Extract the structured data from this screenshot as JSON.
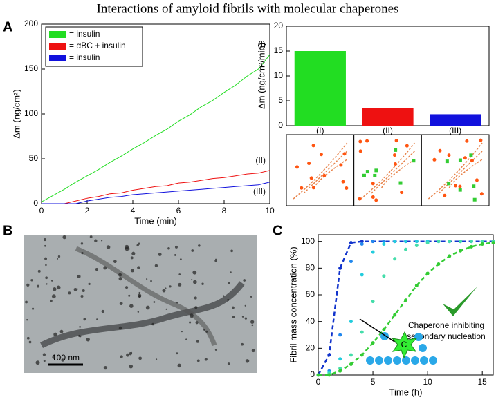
{
  "title": "Interactions of amyloid fibrils with molecular chaperones",
  "panel_labels": [
    "A",
    "B",
    "C"
  ],
  "micrograph": {
    "scale_bar": "100 nm"
  },
  "chart_data": [
    {
      "type": "line",
      "xlabel": "Time (min)",
      "ylabel": "Δm (ng/cm²)",
      "xlim": [
        0,
        10
      ],
      "ylim": [
        0,
        200
      ],
      "xticks": [
        0,
        2,
        4,
        6,
        8,
        10
      ],
      "yticks": [
        0,
        50,
        100,
        150,
        200
      ],
      "legend": "upper left",
      "x": [
        0,
        0.5,
        1,
        1.5,
        2,
        2.5,
        3,
        3.5,
        4,
        4.5,
        5,
        5.5,
        6,
        6.5,
        7,
        7.5,
        8,
        8.5,
        9,
        9.5,
        10
      ],
      "series": [
        {
          "name": "= insulin",
          "label": "(I)",
          "color": "#22dd22",
          "values": [
            2,
            9,
            16,
            24,
            31,
            38,
            46,
            53,
            61,
            68,
            76,
            83,
            92,
            99,
            108,
            115,
            124,
            132,
            142,
            150,
            166
          ]
        },
        {
          "name": "= αBC + insulin",
          "label": "(II)",
          "color": "#ee1111",
          "values": [
            0,
            0,
            0,
            3,
            6,
            8,
            11,
            12,
            15,
            17,
            19,
            20,
            23,
            24,
            26,
            28,
            29,
            31,
            33,
            34,
            37
          ]
        },
        {
          "name": "= insulin",
          "label": "(III)",
          "color": "#1111dd",
          "values": [
            0,
            0,
            0,
            0,
            3,
            5,
            7,
            8,
            10,
            11,
            12,
            13,
            14,
            15,
            16,
            17,
            18,
            19,
            20,
            21,
            24
          ]
        }
      ]
    },
    {
      "type": "bar",
      "ylabel": "Δm (ng/cm²/min)",
      "categories": [
        "(I)",
        "(II)",
        "(III)"
      ],
      "values": [
        15,
        3.6,
        2.3
      ],
      "colors": [
        "#22dd22",
        "#ee1111",
        "#1111dd"
      ],
      "ylim": [
        0,
        20
      ],
      "yticks": [
        0,
        5,
        10,
        15,
        20
      ]
    },
    {
      "type": "scatter",
      "xlabel": "Time (h)",
      "ylabel": "Fibril mass concentration (%)",
      "xlim": [
        0,
        16
      ],
      "ylim": [
        0,
        105
      ],
      "xticks": [
        0,
        5,
        10,
        15
      ],
      "yticks": [
        0,
        20,
        40,
        60,
        80,
        100
      ],
      "annotations": [
        "Chaperone inhibiting",
        "secondary nucleation"
      ],
      "chaperone_label": "C",
      "x": [
        0,
        1,
        2,
        3,
        4,
        5,
        6,
        7,
        8,
        9,
        10,
        11,
        12,
        13,
        14,
        15,
        16
      ],
      "series": [
        {
          "color": "#1133cc",
          "dashed": true,
          "values": [
            0,
            15,
            80,
            99,
            100,
            100,
            100,
            100,
            100,
            100,
            100,
            100,
            100,
            100,
            100,
            100,
            100
          ]
        },
        {
          "color": "#2288ee",
          "values": [
            0,
            3,
            30,
            85,
            98,
            100,
            100,
            100,
            100,
            100,
            100,
            100,
            100,
            100,
            100,
            100,
            100
          ]
        },
        {
          "color": "#22ccdd",
          "values": [
            0,
            2,
            12,
            40,
            75,
            92,
            98,
            100,
            100,
            100,
            100,
            100,
            100,
            100,
            100,
            100,
            100
          ]
        },
        {
          "color": "#44ddaa",
          "values": [
            0,
            1,
            5,
            15,
            32,
            55,
            74,
            87,
            94,
            97,
            99,
            100,
            100,
            100,
            100,
            100,
            100
          ]
        },
        {
          "color": "#33cc33",
          "dashed": true,
          "values": [
            0,
            0,
            3,
            8,
            15,
            24,
            34,
            45,
            56,
            67,
            76,
            83,
            89,
            93,
            96,
            98,
            99
          ]
        }
      ]
    }
  ]
}
